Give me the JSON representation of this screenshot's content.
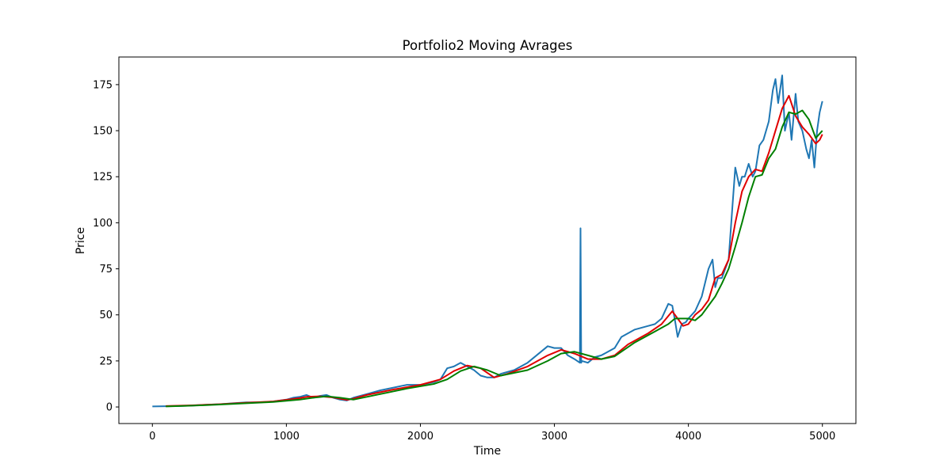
{
  "chart_data": {
    "type": "line",
    "title": "Portfolio2 Moving Avrages",
    "xlabel": "Time",
    "ylabel": "Price",
    "xlim": [
      -250,
      5250
    ],
    "ylim": [
      -9,
      190
    ],
    "xticks": [
      0,
      1000,
      2000,
      3000,
      4000,
      5000
    ],
    "xtick_labels": [
      "0",
      "1000",
      "2000",
      "3000",
      "4000",
      "5000"
    ],
    "yticks": [
      0,
      25,
      50,
      75,
      100,
      125,
      150,
      175
    ],
    "ytick_labels": [
      "0",
      "25",
      "50",
      "75",
      "100",
      "125",
      "150",
      "175"
    ],
    "grid": false,
    "legend": null,
    "series": [
      {
        "color": "#1f77b4",
        "x": [
          0,
          100,
          200,
          300,
          400,
          500,
          600,
          700,
          800,
          900,
          1000,
          1050,
          1100,
          1150,
          1200,
          1250,
          1300,
          1350,
          1400,
          1450,
          1500,
          1600,
          1700,
          1800,
          1900,
          2000,
          2100,
          2150,
          2200,
          2250,
          2300,
          2350,
          2400,
          2450,
          2500,
          2550,
          2600,
          2700,
          2800,
          2900,
          2950,
          3000,
          3050,
          3100,
          3150,
          3190,
          3195,
          3200,
          3205,
          3250,
          3300,
          3350,
          3400,
          3450,
          3500,
          3600,
          3700,
          3750,
          3800,
          3850,
          3880,
          3900,
          3920,
          3950,
          3980,
          4000,
          4050,
          4100,
          4150,
          4180,
          4200,
          4220,
          4250,
          4300,
          4330,
          4350,
          4380,
          4400,
          4420,
          4450,
          4480,
          4500,
          4530,
          4560,
          4600,
          4630,
          4650,
          4670,
          4700,
          4720,
          4750,
          4770,
          4800,
          4820,
          4850,
          4880,
          4900,
          4920,
          4940,
          4960,
          4980,
          5000
        ],
        "y": [
          0.3,
          0.4,
          0.5,
          0.8,
          1.2,
          1.5,
          2.0,
          2.5,
          2.5,
          3.0,
          4.0,
          5.0,
          5.5,
          6.5,
          5.0,
          6.0,
          6.5,
          5.0,
          4.0,
          3.5,
          5.0,
          7.0,
          9.0,
          10.5,
          12.0,
          12.0,
          13.5,
          15.0,
          21.0,
          22.0,
          24.0,
          22.0,
          20.0,
          17.0,
          16.0,
          16.0,
          18.0,
          20.0,
          24.0,
          30.0,
          33.0,
          32.0,
          32.0,
          28.0,
          26.0,
          24.0,
          97.0,
          24.0,
          25.0,
          24.0,
          27.0,
          28.0,
          30.0,
          32.0,
          38.0,
          42.0,
          44.0,
          45.0,
          48.0,
          56.0,
          55.0,
          47.0,
          38.0,
          45.0,
          46.0,
          48.0,
          52.0,
          60.0,
          75.0,
          80.0,
          65.0,
          70.0,
          70.0,
          80.0,
          110.0,
          130.0,
          120.0,
          125.0,
          125.0,
          132.0,
          125.0,
          128.0,
          142.0,
          145.0,
          155.0,
          172.0,
          178.0,
          165.0,
          180.0,
          150.0,
          160.0,
          145.0,
          170.0,
          155.0,
          150.0,
          140.0,
          135.0,
          145.0,
          130.0,
          150.0,
          160.0,
          166.0
        ]
      },
      {
        "color": "#e00000",
        "x": [
          100,
          300,
          500,
          700,
          900,
          1100,
          1150,
          1250,
          1350,
          1450,
          1500,
          1600,
          1800,
          2000,
          2150,
          2250,
          2350,
          2450,
          2550,
          2650,
          2800,
          2950,
          3050,
          3150,
          3250,
          3350,
          3450,
          3550,
          3700,
          3800,
          3880,
          3920,
          3960,
          4000,
          4050,
          4100,
          4150,
          4200,
          4250,
          4300,
          4350,
          4400,
          4450,
          4500,
          4550,
          4600,
          4650,
          4700,
          4750,
          4800,
          4850,
          4900,
          4950,
          4980,
          5000
        ],
        "y": [
          0.5,
          0.9,
          1.5,
          2.3,
          3.0,
          4.8,
          5.5,
          5.8,
          5.2,
          3.8,
          4.5,
          6.5,
          9.5,
          12.0,
          15.0,
          19.5,
          22.5,
          21.0,
          16.0,
          18.0,
          22.0,
          28.0,
          31.0,
          29.0,
          26.0,
          26.0,
          28.0,
          34.0,
          40.0,
          45.0,
          52.0,
          48.0,
          44.0,
          45.0,
          50.0,
          53.0,
          58.0,
          70.0,
          72.0,
          80.0,
          100.0,
          117.0,
          125.0,
          129.0,
          128.0,
          138.0,
          150.0,
          162.0,
          169.0,
          158.0,
          152.0,
          148.0,
          143.0,
          145.0,
          148.0
        ]
      },
      {
        "color": "#008000",
        "x": [
          100,
          300,
          500,
          700,
          900,
          1100,
          1200,
          1300,
          1400,
          1500,
          1700,
          1900,
          2100,
          2200,
          2300,
          2400,
          2500,
          2600,
          2800,
          2950,
          3050,
          3150,
          3250,
          3350,
          3450,
          3600,
          3750,
          3850,
          3900,
          4000,
          4050,
          4100,
          4150,
          4200,
          4250,
          4300,
          4350,
          4400,
          4450,
          4500,
          4550,
          4600,
          4650,
          4700,
          4750,
          4800,
          4850,
          4900,
          4950,
          5000
        ],
        "y": [
          0.3,
          0.7,
          1.3,
          2.0,
          2.7,
          4.0,
          5.0,
          5.8,
          5.0,
          4.0,
          7.0,
          10.0,
          12.5,
          15.0,
          19.5,
          22.0,
          20.0,
          17.0,
          20.0,
          25.0,
          29.0,
          30.0,
          28.0,
          26.0,
          27.5,
          35.0,
          41.0,
          45.0,
          48.0,
          48.0,
          47.0,
          50.0,
          55.0,
          60.0,
          67.0,
          75.0,
          87.0,
          100.0,
          114.0,
          125.0,
          126.0,
          135.0,
          140.0,
          152.0,
          160.0,
          159.0,
          161.0,
          156.0,
          146.0,
          150.0
        ]
      }
    ]
  }
}
